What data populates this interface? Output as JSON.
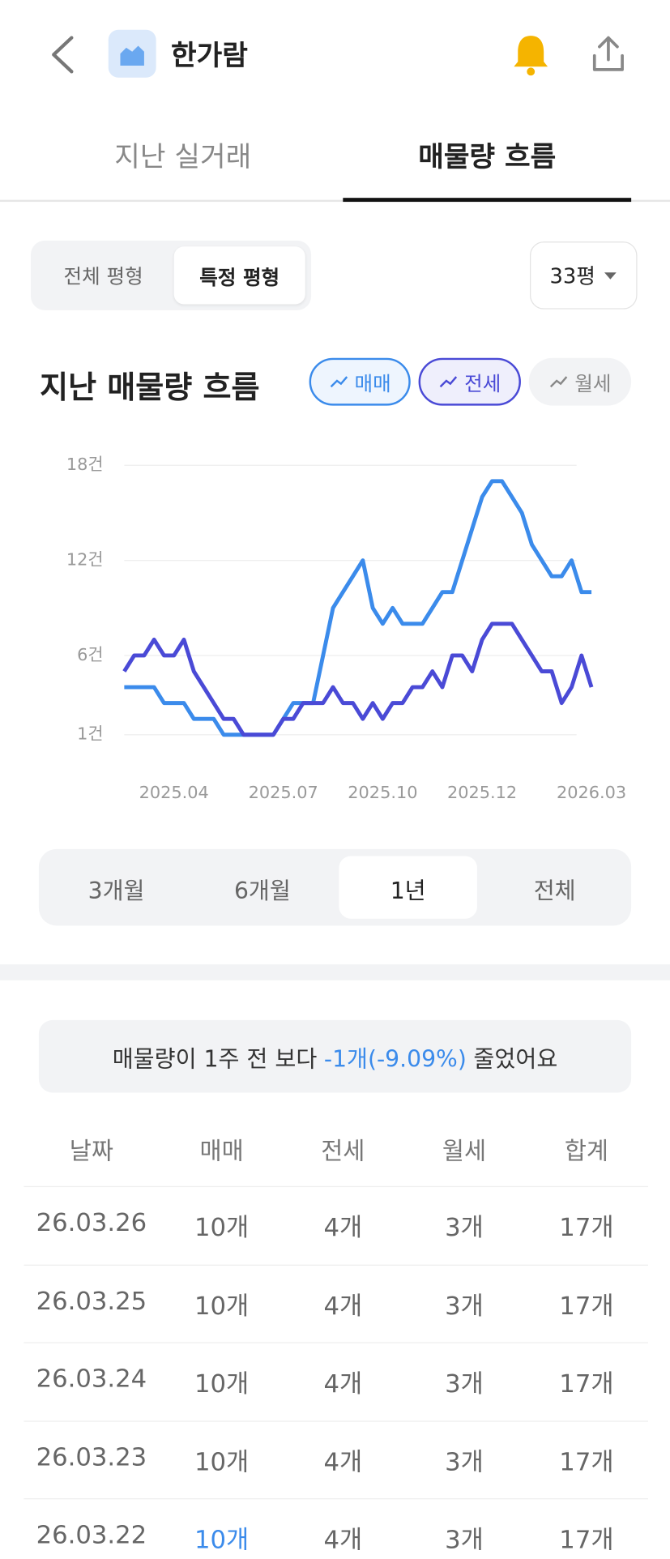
{
  "header": {
    "title": "한가람"
  },
  "tabs": [
    "지난 실거래",
    "매물량 흐름"
  ],
  "area_filter": [
    "전체 평형",
    "특정 평형"
  ],
  "area_select": "33평",
  "chart_data": {
    "type": "line",
    "title": "지난 매물량 흐름",
    "categories": [
      null,
      null,
      null,
      null,
      null,
      "2025.04",
      null,
      null,
      null,
      null,
      null,
      null,
      null,
      null,
      null,
      null,
      "2025.07",
      null,
      null,
      null,
      null,
      null,
      null,
      null,
      null,
      null,
      "2025.10",
      null,
      null,
      null,
      null,
      null,
      null,
      null,
      null,
      null,
      "2025.12",
      null,
      null,
      null,
      null,
      null,
      null,
      null,
      null,
      null,
      null,
      "2026.03"
    ],
    "series": [
      {
        "name": "매매",
        "color": "#3b8beb",
        "values": [
          4,
          4,
          4,
          4,
          3,
          3,
          3,
          2,
          2,
          2,
          1,
          1,
          1,
          1,
          1,
          1,
          2,
          3,
          3,
          3,
          6,
          9,
          10,
          11,
          12,
          9,
          8,
          9,
          8,
          8,
          8,
          9,
          10,
          10,
          12,
          14,
          16,
          17,
          17,
          16,
          15,
          13,
          12,
          11,
          11,
          12,
          10,
          10
        ]
      },
      {
        "name": "전세",
        "color": "#4a4ad6",
        "values": [
          5,
          6,
          6,
          7,
          6,
          6,
          7,
          5,
          4,
          3,
          2,
          2,
          1,
          1,
          1,
          1,
          2,
          2,
          3,
          3,
          3,
          4,
          3,
          3,
          2,
          3,
          2,
          3,
          3,
          4,
          4,
          5,
          4,
          6,
          6,
          5,
          7,
          8,
          8,
          8,
          7,
          6,
          5,
          5,
          3,
          4,
          6,
          4
        ]
      }
    ],
    "ylim": [
      1,
      18
    ],
    "yticks": [
      {
        "value": 18,
        "label": "18건"
      },
      {
        "value": 12,
        "label": "12건"
      },
      {
        "value": 6,
        "label": "6건"
      },
      {
        "value": 1,
        "label": "1건"
      }
    ],
    "grid": true
  },
  "legend_extra": "월세",
  "periods": [
    "3개월",
    "6개월",
    "1년",
    "전체"
  ],
  "summary": {
    "prefix": "매물량이 1주 전 보다",
    "change": "-1개(-9.09%)",
    "suffix": "줄었어요"
  },
  "table": {
    "columns": [
      "날짜",
      "매매",
      "전세",
      "월세",
      "합계"
    ],
    "rows": [
      [
        "26.03.26",
        "10개",
        "4개",
        "3개",
        "17개"
      ],
      [
        "26.03.25",
        "10개",
        "4개",
        "3개",
        "17개"
      ],
      [
        "26.03.24",
        "10개",
        "4개",
        "3개",
        "17개"
      ],
      [
        "26.03.23",
        "10개",
        "4개",
        "3개",
        "17개"
      ],
      [
        "26.03.22",
        "10개",
        "4개",
        "3개",
        "17개"
      ]
    ]
  }
}
